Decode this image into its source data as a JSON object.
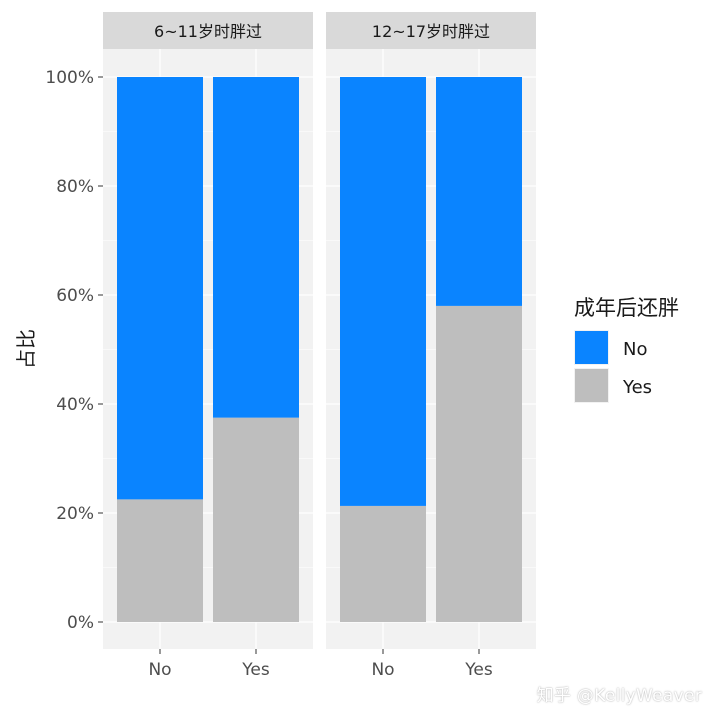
{
  "chart_data": {
    "type": "bar",
    "stacked": true,
    "ylabel": "占比",
    "xlabel": "",
    "ylim": [
      0,
      1
    ],
    "yticks": [
      "0%",
      "20%",
      "40%",
      "60%",
      "80%",
      "100%"
    ],
    "categories": [
      "No",
      "Yes"
    ],
    "legend": {
      "title": "成年后还胖",
      "placement": "right",
      "entries": [
        "No",
        "Yes"
      ]
    },
    "colors": {
      "No": "#0a84ff",
      "Yes": "#bebebe"
    },
    "panels": [
      {
        "title": "6~11岁时胖过",
        "series": [
          {
            "name": "Yes",
            "values": [
              0.225,
              0.375
            ]
          },
          {
            "name": "No",
            "values": [
              0.775,
              0.625
            ]
          }
        ]
      },
      {
        "title": "12~17岁时胖过",
        "series": [
          {
            "name": "Yes",
            "values": [
              0.213,
              0.58
            ]
          },
          {
            "name": "No",
            "values": [
              0.787,
              0.42
            ]
          }
        ]
      }
    ]
  },
  "watermark": "知乎 @KellyWeaver"
}
